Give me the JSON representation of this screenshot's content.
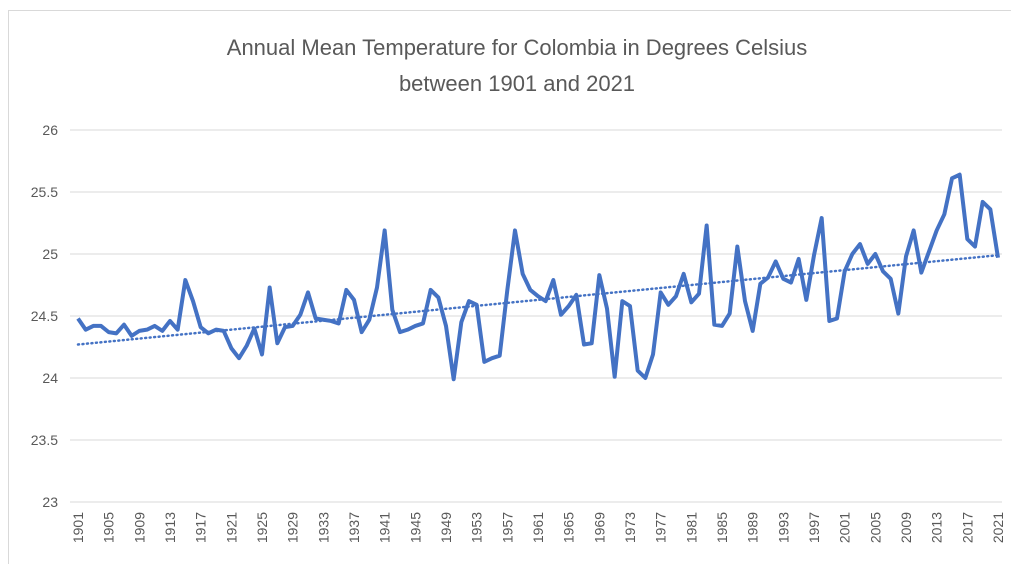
{
  "chart_data": {
    "type": "line",
    "title": [
      "Annual Mean Temperature for Colombia in Degrees Celsius",
      "between 1901 and 2021"
    ],
    "categories": [
      "1901",
      null,
      null,
      null,
      "1905",
      null,
      null,
      null,
      "1909",
      null,
      null,
      null,
      "1913",
      null,
      null,
      null,
      "1917",
      null,
      null,
      null,
      "1921",
      null,
      null,
      null,
      "1925",
      null,
      null,
      null,
      "1929",
      null,
      null,
      null,
      "1933",
      null,
      null,
      null,
      "1937",
      null,
      null,
      null,
      "1941",
      null,
      null,
      null,
      "1945",
      null,
      null,
      null,
      "1949",
      null,
      null,
      null,
      "1953",
      null,
      null,
      null,
      "1957",
      null,
      null,
      null,
      "1961",
      null,
      null,
      null,
      "1965",
      null,
      null,
      null,
      "1969",
      null,
      null,
      null,
      "1973",
      null,
      null,
      null,
      "1977",
      null,
      null,
      null,
      "1981",
      null,
      null,
      null,
      "1985",
      null,
      null,
      null,
      "1989",
      null,
      null,
      null,
      "1993",
      null,
      null,
      null,
      "1997",
      null,
      null,
      null,
      "2001",
      null,
      null,
      null,
      "2005",
      null,
      null,
      null,
      "2009",
      null,
      null,
      null,
      "2013",
      null,
      null,
      null,
      "2017",
      null,
      null,
      null,
      "2021"
    ],
    "series": [
      {
        "color": "#4472c4",
        "values": [
          24.48,
          24.39,
          24.42,
          24.42,
          24.37,
          24.36,
          24.43,
          24.34,
          24.38,
          24.39,
          24.42,
          24.38,
          24.46,
          24.39,
          24.79,
          24.62,
          24.41,
          24.36,
          24.39,
          24.38,
          24.24,
          24.16,
          24.26,
          24.4,
          24.19,
          24.73,
          24.28,
          24.41,
          24.42,
          24.51,
          24.69,
          24.48,
          24.47,
          24.46,
          24.44,
          24.71,
          24.63,
          24.37,
          24.47,
          24.73,
          25.19,
          24.55,
          24.37,
          24.39,
          24.42,
          24.44,
          24.71,
          24.65,
          24.42,
          23.99,
          24.45,
          24.62,
          24.59,
          24.13,
          24.16,
          24.18,
          24.71,
          25.19,
          24.84,
          24.71,
          24.66,
          24.62,
          24.79,
          24.51,
          24.58,
          24.67,
          24.27,
          24.28,
          24.83,
          24.56,
          24.01,
          24.62,
          24.58,
          24.06,
          24.0,
          24.19,
          24.69,
          24.59,
          24.66,
          24.84,
          24.61,
          24.68,
          25.23,
          24.43,
          24.42,
          24.52,
          25.06,
          24.62,
          24.38,
          24.76,
          24.81,
          24.94,
          24.8,
          24.77,
          24.96,
          24.63,
          24.99,
          25.29,
          24.46,
          24.48,
          24.86,
          25.0,
          25.08,
          24.92,
          25.0,
          24.86,
          24.8,
          24.52,
          24.98,
          25.19,
          24.85,
          25.02,
          25.19,
          25.32,
          25.61,
          25.64,
          25.12,
          25.06,
          25.42,
          25.36,
          24.97
        ]
      }
    ],
    "trendline": {
      "color": "#4472c4",
      "values": [
        24.27,
        24.99
      ]
    },
    "ylim": [
      23,
      26
    ],
    "yticks": [
      23,
      23.5,
      24,
      24.5,
      25,
      25.5,
      26
    ],
    "grid": true
  }
}
